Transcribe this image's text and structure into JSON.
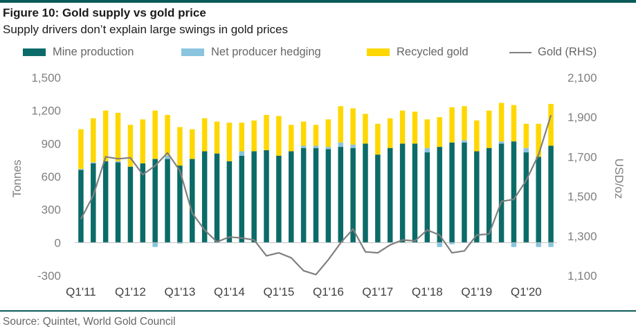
{
  "header": {
    "title": "Figure 10: Gold supply vs gold price",
    "subtitle": "Supply drivers don’t explain large swings in gold prices"
  },
  "legend": {
    "mine": "Mine production",
    "hedging": "Net producer hedging",
    "recycled": "Recycled gold",
    "gold": "Gold (RHS)"
  },
  "footer": {
    "source": "Source: Quintet, World Gold Council"
  },
  "colors": {
    "mine": "#0b6b68",
    "hedging": "#8ac4df",
    "recycled": "#ffd700",
    "gold": "#7f7f7f",
    "axis_text": "#7f7f7f",
    "rule": "#0b5a57"
  },
  "chart_data": {
    "type": "bar",
    "stacked": true,
    "title": "Figure 10: Gold supply vs gold price",
    "subtitle": "Supply drivers don’t explain large swings in gold prices",
    "ylabel": "Tonnes",
    "y2label": "USD/oz",
    "ylim": [
      -300,
      1500
    ],
    "y_ticks": [
      -300,
      0,
      300,
      600,
      900,
      1200,
      1500
    ],
    "y_tick_labels": [
      "-300",
      "0",
      "300",
      "600",
      "900",
      "1,200",
      "1,500"
    ],
    "y2lim": [
      1100,
      2100
    ],
    "y2_ticks": [
      1100,
      1300,
      1500,
      1700,
      1900,
      2100
    ],
    "y2_tick_labels": [
      "1,100",
      "1,300",
      "1,500",
      "1,700",
      "1,900",
      "2,100"
    ],
    "x_tick_labels": [
      "Q1'11",
      "Q1'12",
      "Q1'13",
      "Q1'14",
      "Q1'15",
      "Q1'16",
      "Q1'17",
      "Q1'18",
      "Q1'19",
      "Q1'20"
    ],
    "grid": false,
    "legend_position": "top",
    "categories": [
      "Q1'11",
      "Q2'11",
      "Q3'11",
      "Q4'11",
      "Q1'12",
      "Q2'12",
      "Q3'12",
      "Q4'12",
      "Q1'13",
      "Q2'13",
      "Q3'13",
      "Q4'13",
      "Q1'14",
      "Q2'14",
      "Q3'14",
      "Q4'14",
      "Q1'15",
      "Q2'15",
      "Q3'15",
      "Q4'15",
      "Q1'16",
      "Q2'16",
      "Q3'16",
      "Q4'16",
      "Q1'17",
      "Q2'17",
      "Q3'17",
      "Q4'17",
      "Q1'18",
      "Q2'18",
      "Q3'18",
      "Q4'18",
      "Q1'19",
      "Q2'19",
      "Q3'19",
      "Q4'19",
      "Q1'20",
      "Q2'20",
      "Q3'20"
    ],
    "series": [
      {
        "name": "Mine production",
        "type": "bar",
        "axis": "left",
        "values": [
          660,
          720,
          740,
          730,
          690,
          720,
          760,
          760,
          700,
          760,
          830,
          810,
          740,
          790,
          830,
          840,
          790,
          830,
          860,
          860,
          850,
          870,
          860,
          900,
          800,
          860,
          900,
          900,
          820,
          870,
          910,
          910,
          830,
          860,
          900,
          920,
          820,
          780,
          880
        ]
      },
      {
        "name": "Net producer hedging",
        "type": "bar",
        "axis": "left",
        "values": [
          10,
          10,
          0,
          10,
          0,
          0,
          -40,
          30,
          -10,
          0,
          0,
          0,
          0,
          40,
          0,
          0,
          0,
          0,
          20,
          20,
          20,
          40,
          30,
          0,
          0,
          0,
          0,
          0,
          40,
          -40,
          -15,
          20,
          0,
          0,
          20,
          -40,
          40,
          -40,
          -40
        ]
      },
      {
        "name": "Recycled gold",
        "type": "bar",
        "axis": "left",
        "values": [
          360,
          400,
          460,
          440,
          380,
          400,
          440,
          370,
          350,
          270,
          300,
          290,
          350,
          260,
          280,
          320,
          360,
          240,
          220,
          190,
          250,
          330,
          330,
          270,
          280,
          270,
          300,
          290,
          260,
          270,
          320,
          310,
          280,
          340,
          350,
          330,
          220,
          300,
          380
        ]
      },
      {
        "name": "Gold (RHS)",
        "type": "line",
        "axis": "right",
        "values": [
          1385,
          1505,
          1700,
          1690,
          1695,
          1610,
          1655,
          1720,
          1630,
          1415,
          1330,
          1270,
          1295,
          1290,
          1280,
          1200,
          1215,
          1190,
          1125,
          1105,
          1180,
          1265,
          1335,
          1220,
          1215,
          1255,
          1280,
          1275,
          1330,
          1305,
          1215,
          1225,
          1305,
          1310,
          1475,
          1485,
          1580,
          1710,
          1910
        ]
      }
    ]
  }
}
